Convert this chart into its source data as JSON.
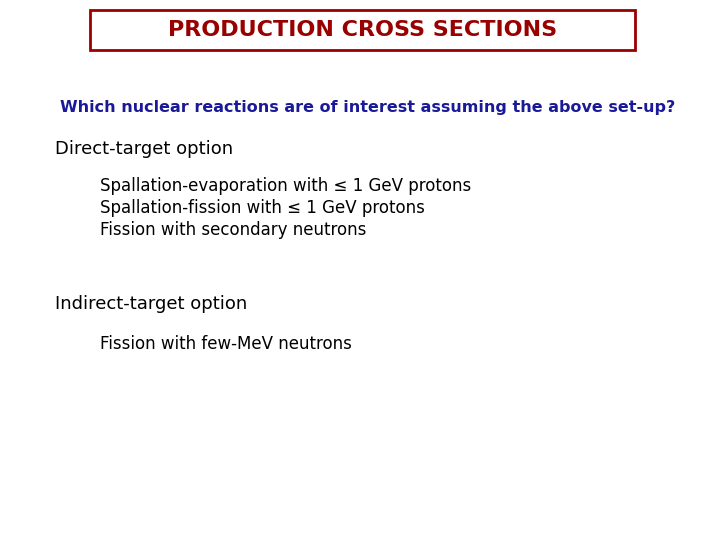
{
  "title": "PRODUCTION CROSS SECTIONS",
  "title_color": "#990000",
  "title_fontsize": 16,
  "title_box_color": "#990000",
  "background_color": "#ffffff",
  "question_text": "Which nuclear reactions are of interest assuming the above set-up?",
  "question_color": "#1a1a99",
  "question_fontsize": 11.5,
  "question_fontweight": "bold",
  "section1_header": "Direct-target option",
  "section1_color": "#000000",
  "section1_fontsize": 13,
  "section1_items": [
    "Spallation-evaporation with ≤ 1 GeV protons",
    "Spallation-fission with ≤ 1 GeV protons",
    "Fission with secondary neutrons"
  ],
  "section1_items_color": "#000000",
  "section1_items_fontsize": 12,
  "section2_header": "Indirect-target option",
  "section2_color": "#000000",
  "section2_fontsize": 13,
  "section2_items": [
    "Fission with few-MeV neutrons"
  ],
  "section2_items_color": "#000000",
  "section2_items_fontsize": 12
}
